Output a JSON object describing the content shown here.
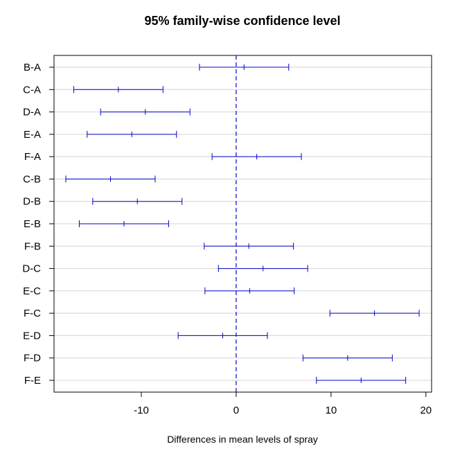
{
  "colors": {
    "interval": "#0000cc",
    "zero_line": "#0000cc",
    "grid": "#d3d3d3",
    "axis": "#000000",
    "background": "#ffffff"
  },
  "chart_data": {
    "type": "errorbar",
    "title": "95% family-wise confidence level",
    "xlabel": "Differences in mean levels of spray",
    "ylabel": "",
    "xlim": [
      -19.2,
      20.6
    ],
    "xticks": [
      -10,
      0,
      10,
      20
    ],
    "xtick_labels": [
      "-10",
      "0",
      "10",
      "20"
    ],
    "reference_line": 0,
    "grid": true,
    "comparisons": [
      {
        "label": "B-A",
        "diff": 0.83,
        "lwr": -3.87,
        "upr": 5.54
      },
      {
        "label": "C-A",
        "diff": -12.42,
        "lwr": -17.12,
        "upr": -7.71
      },
      {
        "label": "D-A",
        "diff": -9.58,
        "lwr": -14.29,
        "upr": -4.87
      },
      {
        "label": "E-A",
        "diff": -11.0,
        "lwr": -15.71,
        "upr": -6.29
      },
      {
        "label": "F-A",
        "diff": 2.17,
        "lwr": -2.54,
        "upr": 6.87
      },
      {
        "label": "C-B",
        "diff": -13.25,
        "lwr": -17.96,
        "upr": -8.54
      },
      {
        "label": "D-B",
        "diff": -10.42,
        "lwr": -15.12,
        "upr": -5.71
      },
      {
        "label": "E-B",
        "diff": -11.83,
        "lwr": -16.54,
        "upr": -7.12
      },
      {
        "label": "F-B",
        "diff": 1.33,
        "lwr": -3.37,
        "upr": 6.04
      },
      {
        "label": "D-C",
        "diff": 2.83,
        "lwr": -1.87,
        "upr": 7.54
      },
      {
        "label": "E-C",
        "diff": 1.42,
        "lwr": -3.29,
        "upr": 6.12
      },
      {
        "label": "F-C",
        "diff": 14.58,
        "lwr": 9.88,
        "upr": 19.29
      },
      {
        "label": "E-D",
        "diff": -1.42,
        "lwr": -6.12,
        "upr": 3.29
      },
      {
        "label": "F-D",
        "diff": 11.75,
        "lwr": 7.04,
        "upr": 16.46
      },
      {
        "label": "F-E",
        "diff": 13.17,
        "lwr": 8.46,
        "upr": 17.87
      }
    ]
  }
}
